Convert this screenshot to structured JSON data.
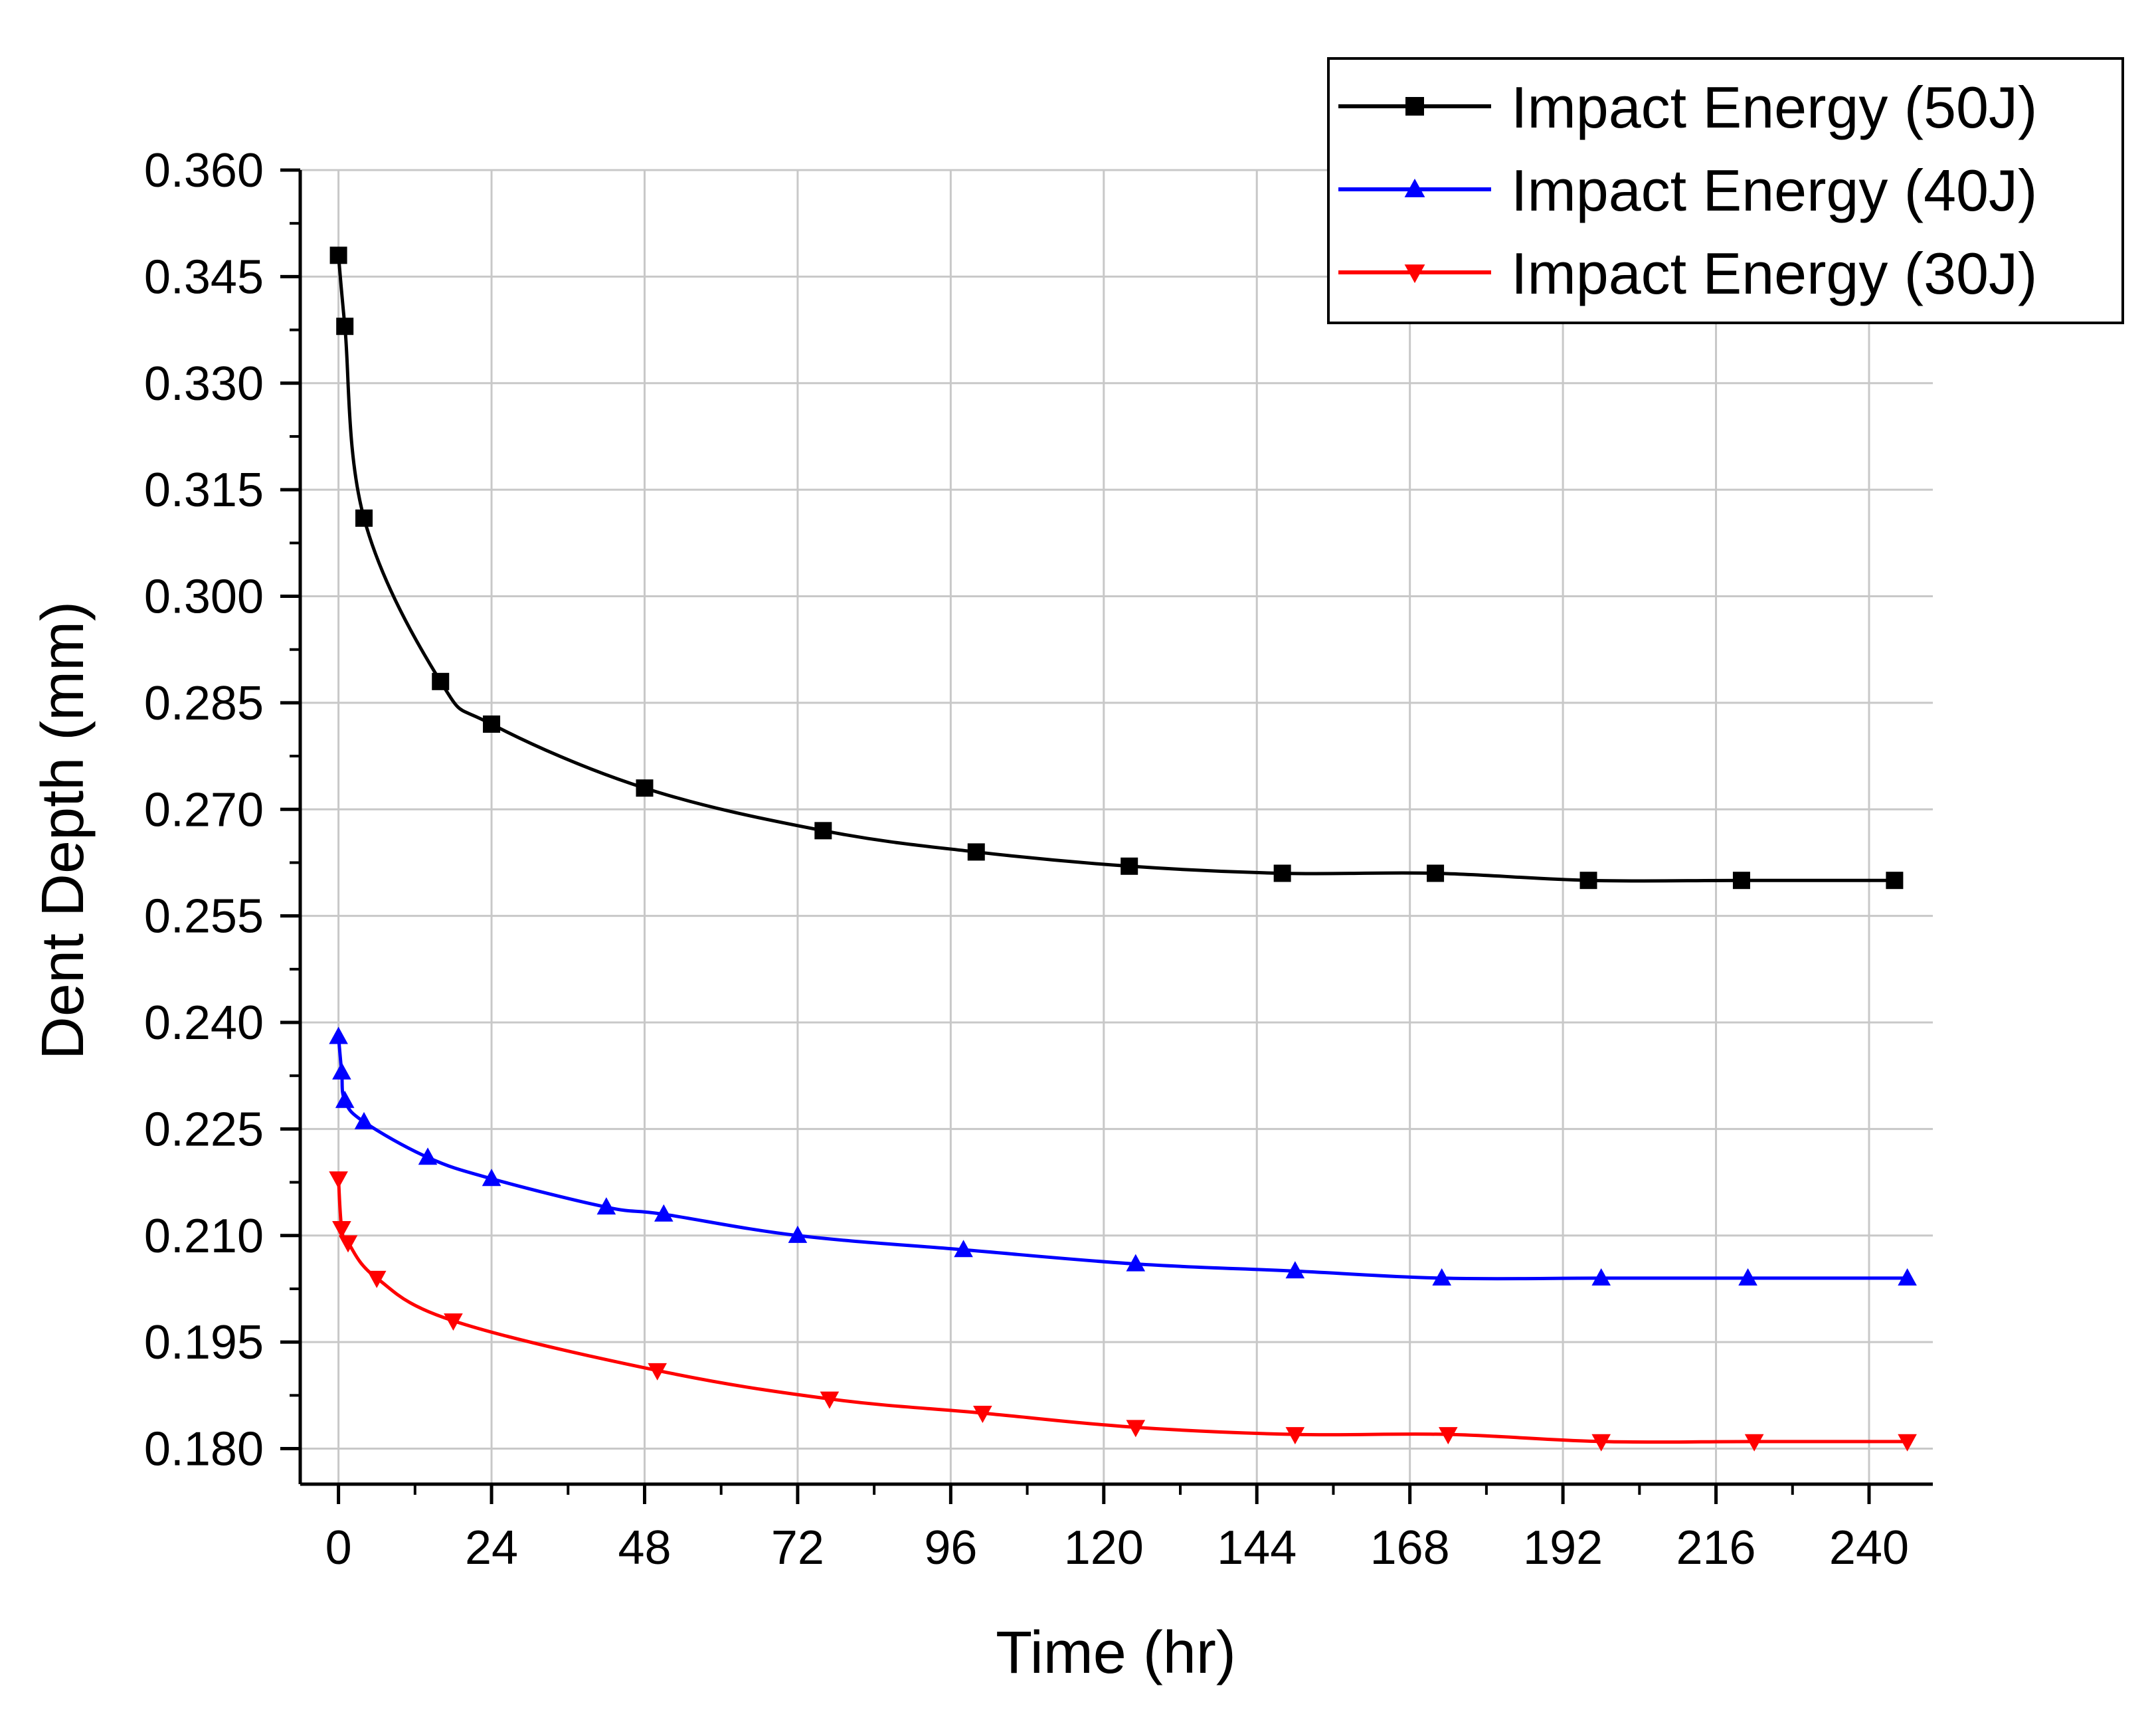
{
  "chart_data": {
    "type": "line",
    "title": "",
    "xlabel": "Time (hr)",
    "ylabel": "Dent Depth (mm)",
    "xlim": [
      -6,
      250
    ],
    "ylim": [
      0.175,
      0.36
    ],
    "x_ticks": [
      0,
      24,
      48,
      72,
      96,
      120,
      144,
      168,
      192,
      216,
      240
    ],
    "y_ticks": [
      0.18,
      0.195,
      0.21,
      0.225,
      0.24,
      0.255,
      0.27,
      0.285,
      0.3,
      0.315,
      0.33,
      0.345,
      0.36
    ],
    "y_tick_labels": [
      "0.180",
      "0.195",
      "0.210",
      "0.225",
      "0.240",
      "0.255",
      "0.270",
      "0.285",
      "0.300",
      "0.315",
      "0.330",
      "0.345",
      "0.360"
    ],
    "grid": true,
    "legend_position": "top-right",
    "series": [
      {
        "name": "Impact Energy (50J)",
        "color": "#000000",
        "marker": "square",
        "x": [
          0,
          1,
          4,
          16,
          24,
          48,
          76,
          100,
          124,
          148,
          172,
          196,
          220,
          244
        ],
        "y": [
          0.348,
          0.338,
          0.311,
          0.288,
          0.282,
          0.273,
          0.267,
          0.264,
          0.262,
          0.261,
          0.261,
          0.26,
          0.26,
          0.26
        ]
      },
      {
        "name": "Impact Energy (40J)",
        "color": "#0000ff",
        "marker": "triangle-up",
        "x": [
          0,
          0.5,
          1,
          4,
          14,
          24,
          42,
          51,
          72,
          98,
          125,
          150,
          173,
          198,
          221,
          246
        ],
        "y": [
          0.238,
          0.233,
          0.229,
          0.226,
          0.221,
          0.218,
          0.214,
          0.213,
          0.21,
          0.208,
          0.206,
          0.205,
          0.204,
          0.204,
          0.204,
          0.204
        ]
      },
      {
        "name": "Impact Energy (30J)",
        "color": "#ff0000",
        "marker": "triangle-down",
        "x": [
          0,
          0.5,
          1.5,
          6,
          18,
          50,
          77,
          101,
          125,
          150,
          174,
          198,
          222,
          246
        ],
        "y": [
          0.218,
          0.211,
          0.209,
          0.204,
          0.198,
          0.191,
          0.187,
          0.185,
          0.183,
          0.182,
          0.182,
          0.181,
          0.181,
          0.181
        ]
      }
    ]
  }
}
